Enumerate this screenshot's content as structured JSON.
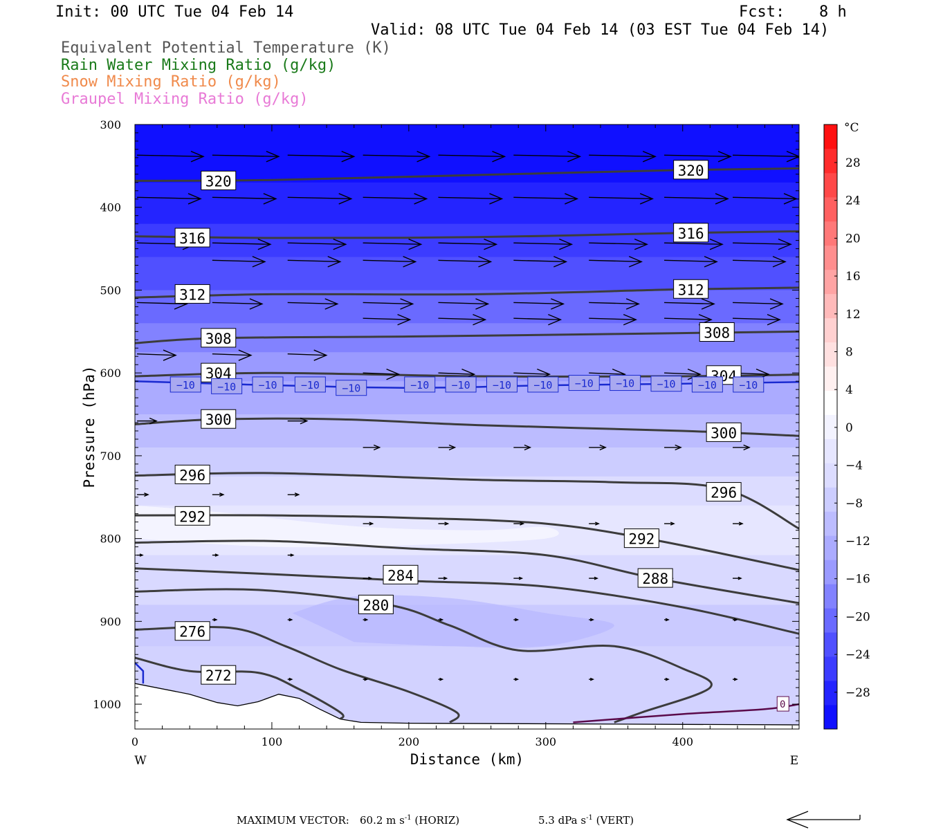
{
  "header": {
    "init": "Init: 00 UTC Tue 04 Feb 14",
    "fcst_label": "Fcst:",
    "fcst_value": "8 h",
    "valid": "Valid: 08 UTC Tue 04 Feb 14 (03 EST Tue 04 Feb 14)",
    "fields": [
      {
        "label": "Equivalent Potential Temperature (K)",
        "color": "#555555"
      },
      {
        "label": "Rain Water Mixing Ratio (g/kg)",
        "color": "#1a7a1a"
      },
      {
        "label": "Snow Mixing Ratio (g/kg)",
        "color": "#f08a4b"
      },
      {
        "label": "Graupel Mixing Ratio (g/kg)",
        "color": "#e87ad6"
      }
    ]
  },
  "footer": {
    "max_vector_label": "MAXIMUM VECTOR:",
    "horiz_value": "60.2 m s",
    "horiz_exp": "-1",
    "horiz_tag": "(HORIZ)",
    "vert_value": "5.3 dPa s",
    "vert_exp": "-1",
    "vert_tag": "(VERT)"
  },
  "chart_data": {
    "type": "cross-section contour",
    "xlabel": "Distance (km)",
    "ylabel": "Pressure (hPa)",
    "xlim": [
      0,
      485
    ],
    "ylim": [
      300,
      1030
    ],
    "y_scale": "linear, inverted (pressure increases downward)",
    "x_ticks": [
      "0",
      "100",
      "200",
      "300",
      "400"
    ],
    "y_ticks": [
      "300",
      "400",
      "500",
      "600",
      "700",
      "800",
      "900",
      "1000"
    ],
    "left_end_label": "W",
    "right_end_label": "E",
    "colorbar": {
      "unit": "°C",
      "tick_labels": [
        "28",
        "24",
        "20",
        "16",
        "12",
        "8",
        "4",
        "0",
        "−4",
        "−8",
        "−12",
        "−16",
        "−20",
        "−24",
        "−28"
      ],
      "colors": [
        "#1010ff",
        "#2424ff",
        "#3c3cff",
        "#5050ff",
        "#6a6aff",
        "#8282ff",
        "#9a9aff",
        "#ababff",
        "#bcbcff",
        "#cccdff",
        "#dcdcff",
        "#e6e6ff",
        "#f3f3ff",
        "#ffffff",
        "#fff0f0",
        "#ffe0e0",
        "#ffd0d0",
        "#ffbaba",
        "#ffa4a4",
        "#ff8e8e",
        "#ff7878",
        "#ff6060",
        "#ff4848",
        "#ff2c2c",
        "#ff1010"
      ]
    },
    "background_bands": [
      {
        "top": 300,
        "color": "#1010ff"
      },
      {
        "top": 370,
        "color": "#2424ff"
      },
      {
        "top": 420,
        "color": "#3c3cff"
      },
      {
        "top": 460,
        "color": "#5050ff"
      },
      {
        "top": 500,
        "color": "#6a6aff"
      },
      {
        "top": 540,
        "color": "#8282ff"
      },
      {
        "top": 575,
        "color": "#9a9aff"
      },
      {
        "top": 610,
        "color": "#ababff"
      },
      {
        "top": 650,
        "color": "#bcbcff"
      },
      {
        "top": 690,
        "color": "#cccdff"
      },
      {
        "top": 725,
        "color": "#dcdcff"
      },
      {
        "top": 760,
        "color": "#e6e6ff"
      },
      {
        "top": 820,
        "color": "#d9d9ff"
      },
      {
        "top": 880,
        "color": "#cacaff"
      },
      {
        "top": 930,
        "color": "#d2d2ff"
      }
    ],
    "theta_e_contours": [
      {
        "value": 320,
        "points": [
          [
            0,
            368
          ],
          [
            100,
            367
          ],
          [
            250,
            361
          ],
          [
            400,
            355
          ],
          [
            485,
            353
          ]
        ],
        "labels": [
          [
            61,
            368
          ],
          [
            406,
            355
          ]
        ]
      },
      {
        "value": 316,
        "points": [
          [
            0,
            435
          ],
          [
            100,
            437
          ],
          [
            250,
            436
          ],
          [
            400,
            431
          ],
          [
            485,
            429
          ]
        ],
        "labels": [
          [
            42,
            437
          ],
          [
            406,
            431
          ]
        ]
      },
      {
        "value": 312,
        "points": [
          [
            0,
            509
          ],
          [
            100,
            505
          ],
          [
            250,
            505
          ],
          [
            400,
            499
          ],
          [
            485,
            497
          ]
        ],
        "labels": [
          [
            42,
            505
          ],
          [
            406,
            499
          ]
        ]
      },
      {
        "value": 308,
        "points": [
          [
            0,
            564
          ],
          [
            60,
            558
          ],
          [
            200,
            556
          ],
          [
            350,
            553
          ],
          [
            485,
            550
          ]
        ],
        "labels": [
          [
            61,
            558
          ],
          [
            425,
            551
          ]
        ]
      },
      {
        "value": 304,
        "points": [
          [
            0,
            604
          ],
          [
            100,
            600
          ],
          [
            250,
            604
          ],
          [
            400,
            604
          ],
          [
            485,
            602
          ]
        ],
        "labels": [
          [
            61,
            600
          ],
          [
            430,
            603
          ]
        ]
      },
      {
        "value": 300,
        "points": [
          [
            0,
            662
          ],
          [
            60,
            656
          ],
          [
            150,
            656
          ],
          [
            250,
            663
          ],
          [
            400,
            670
          ],
          [
            485,
            676
          ]
        ],
        "labels": [
          [
            61,
            656
          ],
          [
            430,
            672
          ]
        ]
      },
      {
        "value": 296,
        "points": [
          [
            0,
            724
          ],
          [
            100,
            721
          ],
          [
            250,
            729
          ],
          [
            350,
            732
          ],
          [
            430,
            740
          ],
          [
            485,
            788
          ]
        ],
        "labels": [
          [
            42,
            723
          ],
          [
            430,
            744
          ]
        ]
      },
      {
        "value": 292,
        "points": [
          [
            0,
            772
          ],
          [
            100,
            772
          ],
          [
            200,
            775
          ],
          [
            300,
            782
          ],
          [
            380,
            802
          ],
          [
            485,
            838
          ]
        ],
        "labels": [
          [
            42,
            773
          ],
          [
            370,
            800
          ]
        ]
      },
      {
        "value": 288,
        "points": [
          [
            0,
            805
          ],
          [
            100,
            803
          ],
          [
            200,
            812
          ],
          [
            300,
            820
          ],
          [
            380,
            848
          ],
          [
            485,
            878
          ]
        ],
        "labels": [
          [
            380,
            848
          ]
        ]
      },
      {
        "value": 284,
        "points": [
          [
            0,
            836
          ],
          [
            100,
            843
          ],
          [
            200,
            851
          ],
          [
            300,
            858
          ],
          [
            400,
            883
          ],
          [
            485,
            915
          ]
        ],
        "labels": [
          [
            194,
            844
          ]
        ]
      },
      {
        "value": 280,
        "points": [
          [
            0,
            864
          ],
          [
            90,
            862
          ],
          [
            185,
            880
          ],
          [
            230,
            905
          ],
          [
            280,
            935
          ],
          [
            350,
            930
          ],
          [
            400,
            957
          ],
          [
            420,
            980
          ],
          [
            370,
            1010
          ],
          [
            350,
            1022
          ]
        ],
        "labels": [
          [
            176,
            880
          ]
        ]
      },
      {
        "value": 276,
        "points": [
          [
            0,
            910
          ],
          [
            70,
            908
          ],
          [
            110,
            930
          ],
          [
            150,
            958
          ],
          [
            200,
            985
          ],
          [
            235,
            1010
          ],
          [
            230,
            1022
          ]
        ],
        "labels": [
          [
            42,
            912
          ]
        ]
      },
      {
        "value": 272,
        "points": [
          [
            0,
            944
          ],
          [
            40,
            960
          ],
          [
            90,
            962
          ],
          [
            120,
            982
          ],
          [
            150,
            1010
          ],
          [
            150,
            1018
          ]
        ],
        "labels": [
          [
            61,
            965
          ]
        ]
      }
    ],
    "isotherm_minus10": {
      "value": -10,
      "color": "#1a2ad0",
      "points": [
        [
          0,
          610
        ],
        [
          80,
          614
        ],
        [
          200,
          618
        ],
        [
          300,
          615
        ],
        [
          400,
          613
        ],
        [
          485,
          611
        ]
      ],
      "labels": [
        [
          37,
          614
        ],
        [
          67,
          616
        ],
        [
          97,
          614
        ],
        [
          128,
          614
        ],
        [
          158,
          618
        ],
        [
          208,
          614
        ],
        [
          238,
          614
        ],
        [
          268,
          614
        ],
        [
          298,
          614
        ],
        [
          328,
          612
        ],
        [
          358,
          612
        ],
        [
          388,
          613
        ],
        [
          418,
          614
        ],
        [
          448,
          614
        ]
      ]
    },
    "isotherm_0": {
      "value": 0,
      "color": "#5a0a4a",
      "points": [
        [
          320,
          1022
        ],
        [
          400,
          1012
        ],
        [
          460,
          1006
        ],
        [
          485,
          1000
        ]
      ],
      "label": [
        473,
        1000
      ]
    },
    "left_isotherm_segment": [
      [
        0,
        950
      ],
      [
        6,
        960
      ],
      [
        6,
        975
      ]
    ],
    "terrain": [
      [
        0,
        975
      ],
      [
        40,
        988
      ],
      [
        60,
        998
      ],
      [
        75,
        1002
      ],
      [
        90,
        997
      ],
      [
        105,
        988
      ],
      [
        120,
        993
      ],
      [
        135,
        1006
      ],
      [
        150,
        1018
      ],
      [
        165,
        1022
      ],
      [
        200,
        1023
      ],
      [
        485,
        1025
      ]
    ],
    "wind_rows": [
      {
        "p": 337,
        "xs": [
          0,
          55,
          110,
          165,
          220,
          275,
          330,
          385,
          435
        ],
        "len": 48
      },
      {
        "p": 388,
        "xs": [
          0,
          55,
          110,
          165,
          220,
          275,
          330,
          385,
          435
        ],
        "len": 46
      },
      {
        "p": 443,
        "xs": [
          0,
          55,
          110,
          165,
          220,
          275,
          330,
          385,
          435
        ],
        "len": 42
      },
      {
        "p": 464,
        "xs": [
          55,
          110,
          165,
          220,
          275,
          330,
          385,
          435
        ],
        "len": 38
      },
      {
        "p": 515,
        "xs": [
          0,
          55,
          110,
          165,
          220,
          275,
          330,
          385,
          435
        ],
        "len": 36
      },
      {
        "p": 534,
        "xs": [
          165,
          220,
          275,
          330,
          385,
          435
        ],
        "len": 34
      },
      {
        "p": 577,
        "xs": [
          0,
          55,
          110
        ],
        "len": 28
      },
      {
        "p": 600,
        "xs": [
          165,
          220,
          275,
          330,
          385,
          435
        ],
        "len": 26
      },
      {
        "p": 658,
        "xs": [
          0,
          55,
          110
        ],
        "len": 14
      },
      {
        "p": 690,
        "xs": [
          165,
          220,
          275,
          330,
          385,
          435
        ],
        "len": 12
      },
      {
        "p": 747,
        "xs": [
          0,
          55,
          110
        ],
        "len": 8
      },
      {
        "p": 782,
        "xs": [
          165,
          220,
          275,
          330,
          385,
          435
        ],
        "len": 7
      },
      {
        "p": 820,
        "xs": [
          0,
          55,
          110
        ],
        "len": 4
      },
      {
        "p": 848,
        "xs": [
          165,
          220,
          275,
          330,
          385,
          435
        ],
        "len": 6
      },
      {
        "p": 898,
        "xs": [
          55,
          110,
          165,
          220,
          275,
          330,
          385,
          435
        ],
        "len": 3
      },
      {
        "p": 970,
        "xs": [
          55,
          110,
          165,
          220,
          275,
          330,
          385,
          435
        ],
        "len": 3
      }
    ]
  }
}
